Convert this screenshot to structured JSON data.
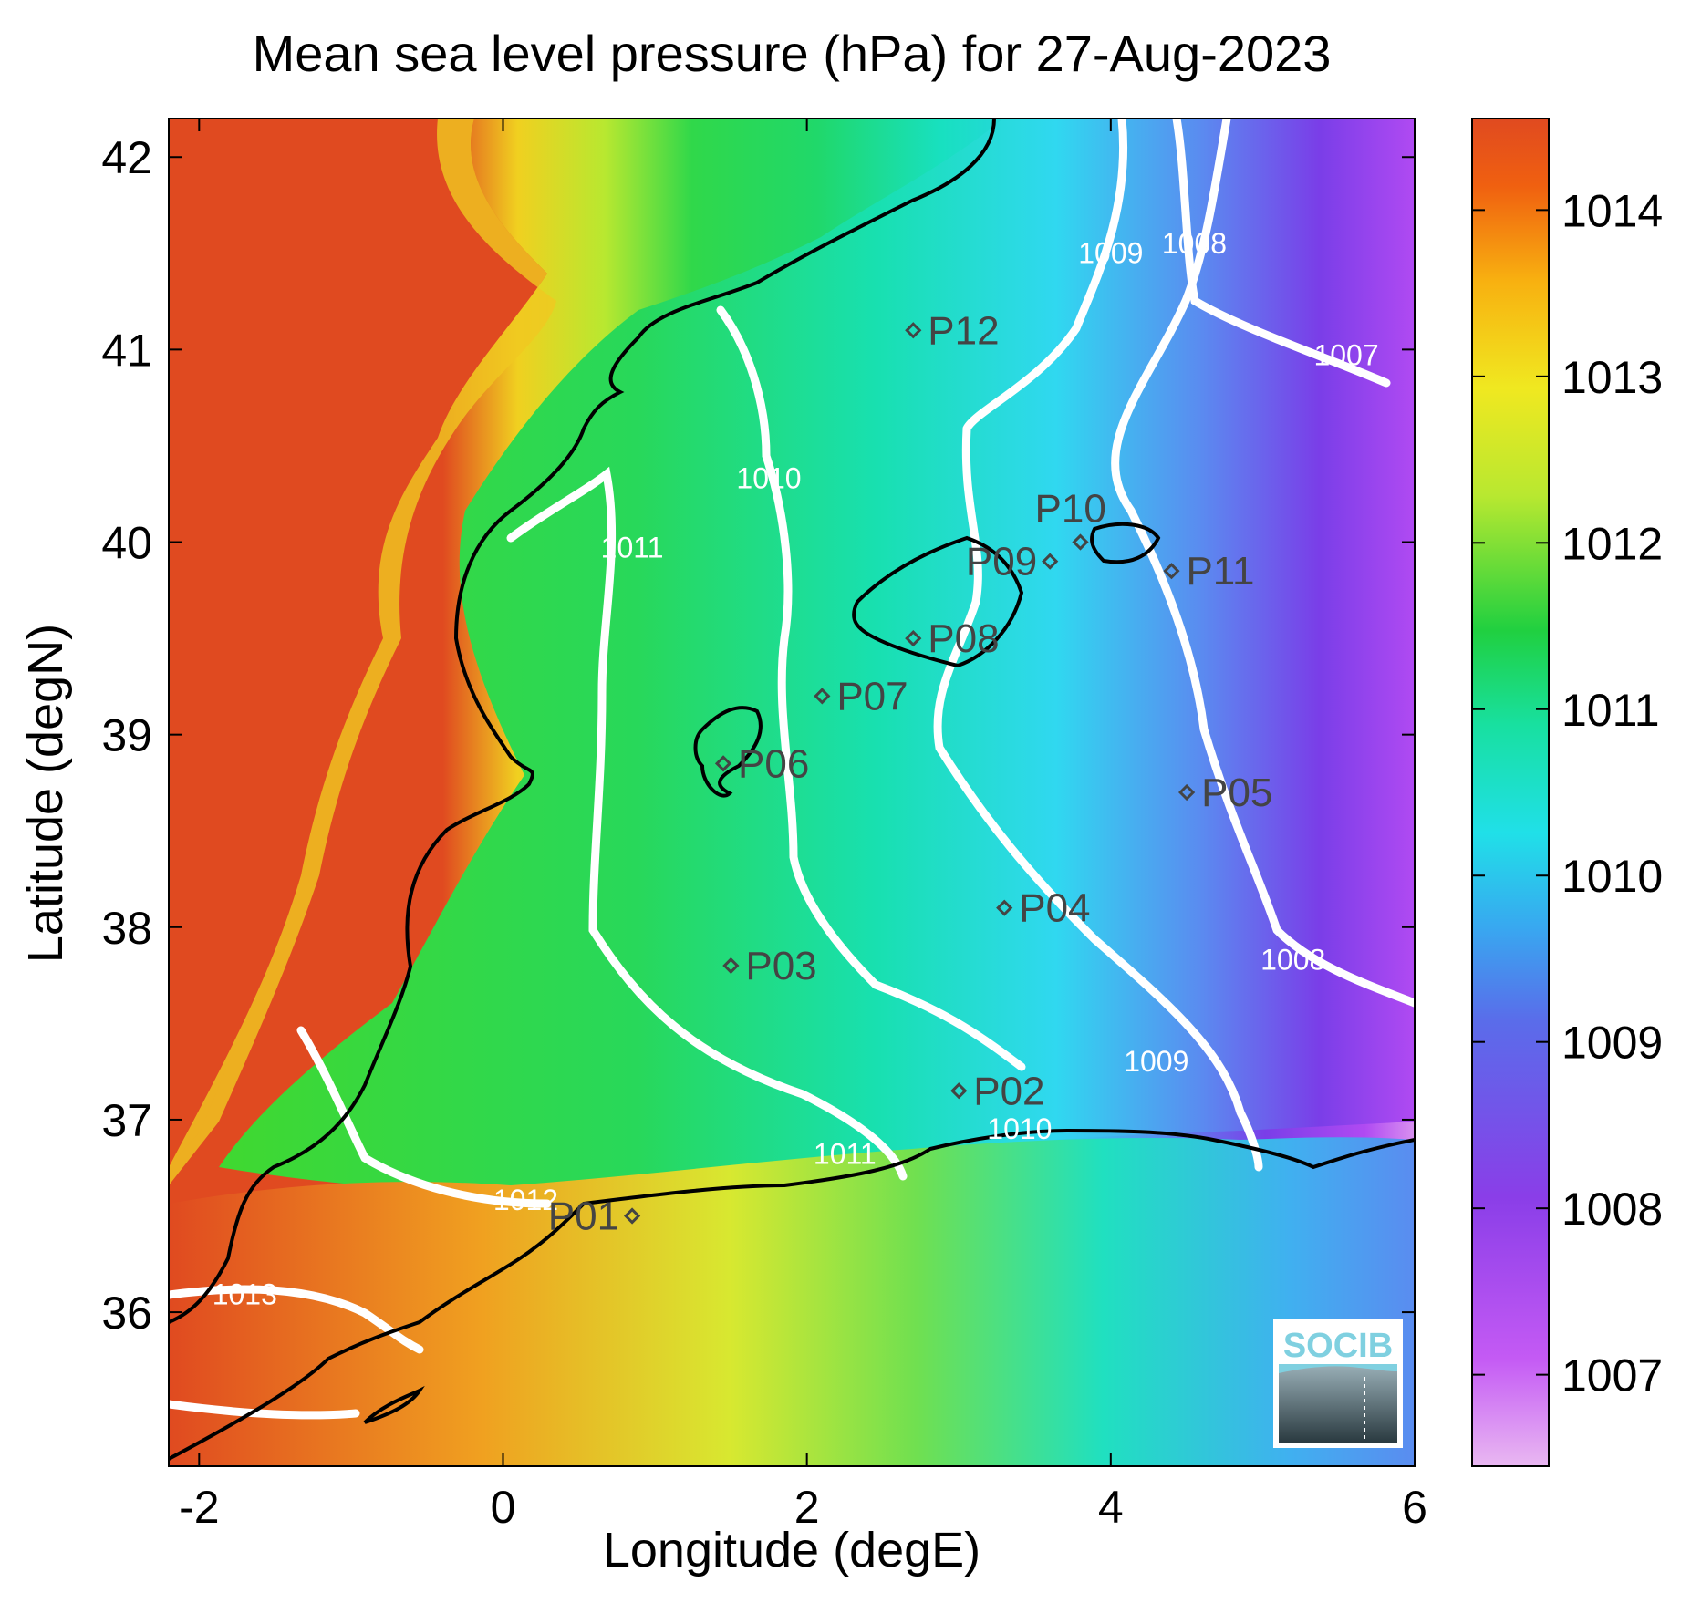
{
  "title": "Mean sea level pressure (hPa) for 27-Aug-2023",
  "x_axis": {
    "label": "Longitude (degE)",
    "range": [
      -2.2,
      6.0
    ],
    "ticks": [
      -2,
      0,
      2,
      4,
      6
    ],
    "tick_labels": [
      "-2",
      "0",
      "2",
      "4",
      "6"
    ]
  },
  "y_axis": {
    "label": "Latitude (degN)",
    "range": [
      35.2,
      42.2
    ],
    "ticks": [
      36,
      37,
      38,
      39,
      40,
      41,
      42
    ],
    "tick_labels": [
      "36",
      "37",
      "38",
      "39",
      "40",
      "41",
      "42"
    ]
  },
  "colorbar": {
    "range": [
      1006.45,
      1014.55
    ],
    "ticks": [
      1007,
      1008,
      1009,
      1010,
      1011,
      1012,
      1013,
      1014
    ],
    "tick_labels": [
      "1007",
      "1008",
      "1009",
      "1010",
      "1011",
      "1012",
      "1013",
      "1014"
    ],
    "colors": [
      "#e9b8f2",
      "#b64af2",
      "#7a3ee8",
      "#4a8cf0",
      "#20e0e8",
      "#18e0a0",
      "#20d040",
      "#b8e830",
      "#f0e820",
      "#f8b010",
      "#f06010",
      "#e04a20"
    ]
  },
  "contours": [
    {
      "label": "1007",
      "label_pos": [
        5.55,
        40.92
      ]
    },
    {
      "label": "1008",
      "label_pos": [
        4.55,
        41.5
      ]
    },
    {
      "label": "1008",
      "label_pos": [
        5.2,
        37.78
      ]
    },
    {
      "label": "1009",
      "label_pos": [
        4.0,
        41.45
      ]
    },
    {
      "label": "1009",
      "label_pos": [
        4.3,
        37.25
      ]
    },
    {
      "label": "1010",
      "label_pos": [
        1.75,
        40.28
      ]
    },
    {
      "label": "1010",
      "label_pos": [
        3.4,
        36.9
      ]
    },
    {
      "label": "1011",
      "label_pos": [
        0.85,
        39.92
      ]
    },
    {
      "label": "1011",
      "label_pos": [
        2.25,
        36.77
      ]
    },
    {
      "label": "1012",
      "label_pos": [
        0.15,
        36.53
      ]
    },
    {
      "label": "1013",
      "label_pos": [
        -1.7,
        36.04
      ]
    }
  ],
  "stations": [
    {
      "name": "P01",
      "lon": 0.85,
      "lat": 36.5
    },
    {
      "name": "P02",
      "lon": 3.0,
      "lat": 37.15
    },
    {
      "name": "P03",
      "lon": 1.5,
      "lat": 37.8
    },
    {
      "name": "P04",
      "lon": 3.3,
      "lat": 38.1
    },
    {
      "name": "P05",
      "lon": 4.5,
      "lat": 38.7
    },
    {
      "name": "P06",
      "lon": 1.45,
      "lat": 38.85
    },
    {
      "name": "P07",
      "lon": 2.1,
      "lat": 39.2
    },
    {
      "name": "P08",
      "lon": 2.7,
      "lat": 39.5
    },
    {
      "name": "P09",
      "lon": 3.6,
      "lat": 39.9
    },
    {
      "name": "P10",
      "lon": 3.8,
      "lat": 40.0
    },
    {
      "name": "P11",
      "lon": 4.4,
      "lat": 39.85
    },
    {
      "name": "P12",
      "lon": 2.7,
      "lat": 41.1
    }
  ],
  "logo": {
    "text": "SOCIB"
  }
}
